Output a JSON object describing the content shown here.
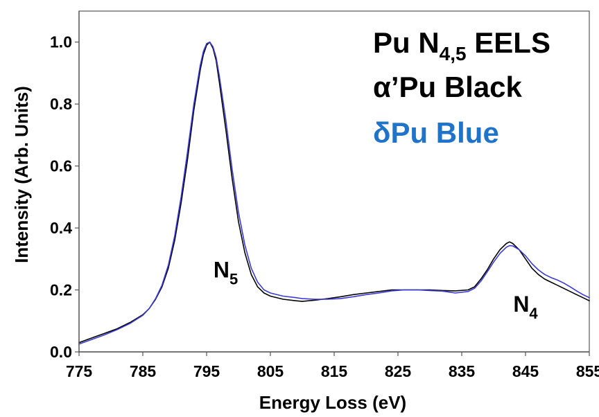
{
  "chart_data": {
    "type": "line",
    "xlabel": "Energy Loss (eV)",
    "ylabel": "Intensity (Arb. Units)",
    "xlim": [
      775,
      855
    ],
    "ylim": [
      0.0,
      1.1
    ],
    "x_ticks": [
      "775",
      "785",
      "795",
      "805",
      "815",
      "825",
      "835",
      "845",
      "855"
    ],
    "y_ticks": [
      "0.0",
      "0.2",
      "0.4",
      "0.6",
      "0.8",
      "1.0"
    ],
    "legend": {
      "line1_main": "Pu N",
      "line1_sub": "4,5",
      "line1_tail": " EELS",
      "line2": "α’Pu Black",
      "line3": "δPu Blue",
      "placement": "top-right"
    },
    "annotations": [
      {
        "main": "N",
        "sub": "5",
        "x": 798,
        "y": 0.24
      },
      {
        "main": "N",
        "sub": "4",
        "x": 845,
        "y": 0.13
      }
    ],
    "series": [
      {
        "name": "α’Pu",
        "color": "#000000",
        "points": [
          [
            775,
            0.03
          ],
          [
            777,
            0.045
          ],
          [
            779,
            0.06
          ],
          [
            781,
            0.075
          ],
          [
            783,
            0.095
          ],
          [
            785,
            0.12
          ],
          [
            786,
            0.14
          ],
          [
            787,
            0.17
          ],
          [
            788,
            0.21
          ],
          [
            789,
            0.27
          ],
          [
            790,
            0.36
          ],
          [
            791,
            0.48
          ],
          [
            792,
            0.62
          ],
          [
            793,
            0.78
          ],
          [
            794,
            0.91
          ],
          [
            794.5,
            0.96
          ],
          [
            795,
            0.99
          ],
          [
            795.5,
            1.0
          ],
          [
            796,
            0.98
          ],
          [
            796.5,
            0.94
          ],
          [
            797,
            0.87
          ],
          [
            798,
            0.72
          ],
          [
            799,
            0.56
          ],
          [
            800,
            0.42
          ],
          [
            801,
            0.32
          ],
          [
            802,
            0.25
          ],
          [
            803,
            0.21
          ],
          [
            804,
            0.19
          ],
          [
            805,
            0.18
          ],
          [
            807,
            0.17
          ],
          [
            809,
            0.165
          ],
          [
            810,
            0.163
          ],
          [
            812,
            0.167
          ],
          [
            814,
            0.172
          ],
          [
            816,
            0.178
          ],
          [
            818,
            0.185
          ],
          [
            820,
            0.19
          ],
          [
            822,
            0.195
          ],
          [
            824,
            0.2
          ],
          [
            826,
            0.2
          ],
          [
            828,
            0.2
          ],
          [
            830,
            0.2
          ],
          [
            832,
            0.198
          ],
          [
            834,
            0.197
          ],
          [
            836,
            0.2
          ],
          [
            837,
            0.21
          ],
          [
            838,
            0.235
          ],
          [
            839,
            0.265
          ],
          [
            840,
            0.3
          ],
          [
            841,
            0.33
          ],
          [
            842,
            0.35
          ],
          [
            842.5,
            0.355
          ],
          [
            843,
            0.35
          ],
          [
            844,
            0.33
          ],
          [
            845,
            0.3
          ],
          [
            846,
            0.27
          ],
          [
            847,
            0.25
          ],
          [
            848,
            0.235
          ],
          [
            849,
            0.225
          ],
          [
            850,
            0.215
          ],
          [
            851,
            0.205
          ],
          [
            852,
            0.195
          ],
          [
            853,
            0.185
          ],
          [
            854,
            0.175
          ],
          [
            855,
            0.165
          ]
        ]
      },
      {
        "name": "δPu",
        "color": "#3a3ad8",
        "points": [
          [
            775,
            0.025
          ],
          [
            777,
            0.04
          ],
          [
            779,
            0.055
          ],
          [
            781,
            0.072
          ],
          [
            783,
            0.092
          ],
          [
            785,
            0.118
          ],
          [
            786,
            0.14
          ],
          [
            787,
            0.172
          ],
          [
            788,
            0.215
          ],
          [
            789,
            0.28
          ],
          [
            790,
            0.375
          ],
          [
            791,
            0.5
          ],
          [
            792,
            0.645
          ],
          [
            793,
            0.8
          ],
          [
            794,
            0.925
          ],
          [
            794.5,
            0.97
          ],
          [
            795,
            0.995
          ],
          [
            795.5,
            1.0
          ],
          [
            796,
            0.985
          ],
          [
            796.5,
            0.95
          ],
          [
            797,
            0.89
          ],
          [
            798,
            0.75
          ],
          [
            799,
            0.59
          ],
          [
            800,
            0.45
          ],
          [
            801,
            0.345
          ],
          [
            802,
            0.27
          ],
          [
            803,
            0.225
          ],
          [
            804,
            0.2
          ],
          [
            805,
            0.19
          ],
          [
            807,
            0.18
          ],
          [
            809,
            0.175
          ],
          [
            810,
            0.172
          ],
          [
            812,
            0.17
          ],
          [
            814,
            0.17
          ],
          [
            816,
            0.172
          ],
          [
            818,
            0.178
          ],
          [
            820,
            0.185
          ],
          [
            822,
            0.19
          ],
          [
            824,
            0.197
          ],
          [
            826,
            0.2
          ],
          [
            828,
            0.2
          ],
          [
            830,
            0.198
          ],
          [
            832,
            0.196
          ],
          [
            834,
            0.19
          ],
          [
            836,
            0.195
          ],
          [
            837,
            0.205
          ],
          [
            838,
            0.228
          ],
          [
            839,
            0.258
          ],
          [
            840,
            0.29
          ],
          [
            841,
            0.318
          ],
          [
            842,
            0.338
          ],
          [
            842.5,
            0.343
          ],
          [
            843,
            0.342
          ],
          [
            844,
            0.33
          ],
          [
            845,
            0.31
          ],
          [
            846,
            0.285
          ],
          [
            847,
            0.265
          ],
          [
            848,
            0.25
          ],
          [
            849,
            0.24
          ],
          [
            850,
            0.232
          ],
          [
            851,
            0.222
          ],
          [
            852,
            0.21
          ],
          [
            853,
            0.197
          ],
          [
            854,
            0.185
          ],
          [
            855,
            0.175
          ]
        ]
      }
    ]
  },
  "colors": {
    "axis": "#555555",
    "legend_black": "#000000",
    "legend_blue": "#1f73c8"
  }
}
